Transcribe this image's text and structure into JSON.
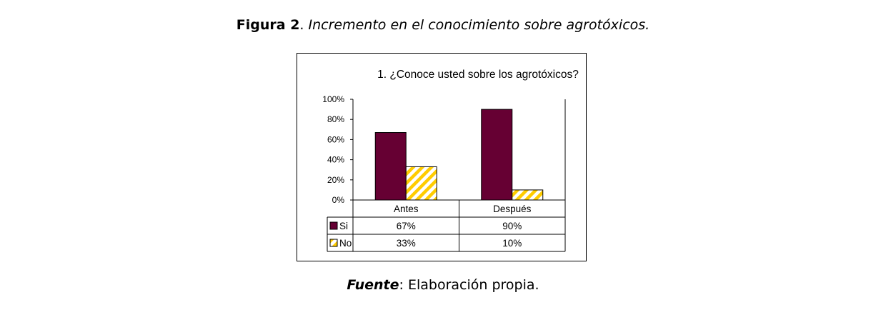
{
  "figure": {
    "label": "Figura 2",
    "separator": ".",
    "caption": "Incremento en el conocimiento sobre agrotóxicos."
  },
  "source": {
    "label": "Fuente",
    "separator": ":",
    "text": "Elaboración propia."
  },
  "chart_data": {
    "type": "bar",
    "title": "1. ¿Conoce usted sobre los agrotóxicos?",
    "categories": [
      "Antes",
      "Después"
    ],
    "series": [
      {
        "name": "Si",
        "values": [
          67,
          90
        ],
        "labels": [
          "67%",
          "90%"
        ],
        "color": "#660033",
        "pattern": "solid"
      },
      {
        "name": "No",
        "values": [
          33,
          10
        ],
        "labels": [
          "33%",
          "10%"
        ],
        "color": "#ffcc00",
        "pattern": "diagonal-stripes"
      }
    ],
    "ylim": [
      0,
      100
    ],
    "y_ticks": [
      0,
      20,
      40,
      60,
      80,
      100
    ],
    "y_tick_labels": [
      "0%",
      "20%",
      "40%",
      "60%",
      "80%",
      "100%"
    ],
    "xlabel": "",
    "ylabel": "",
    "grid": false,
    "legend": "data-table"
  }
}
